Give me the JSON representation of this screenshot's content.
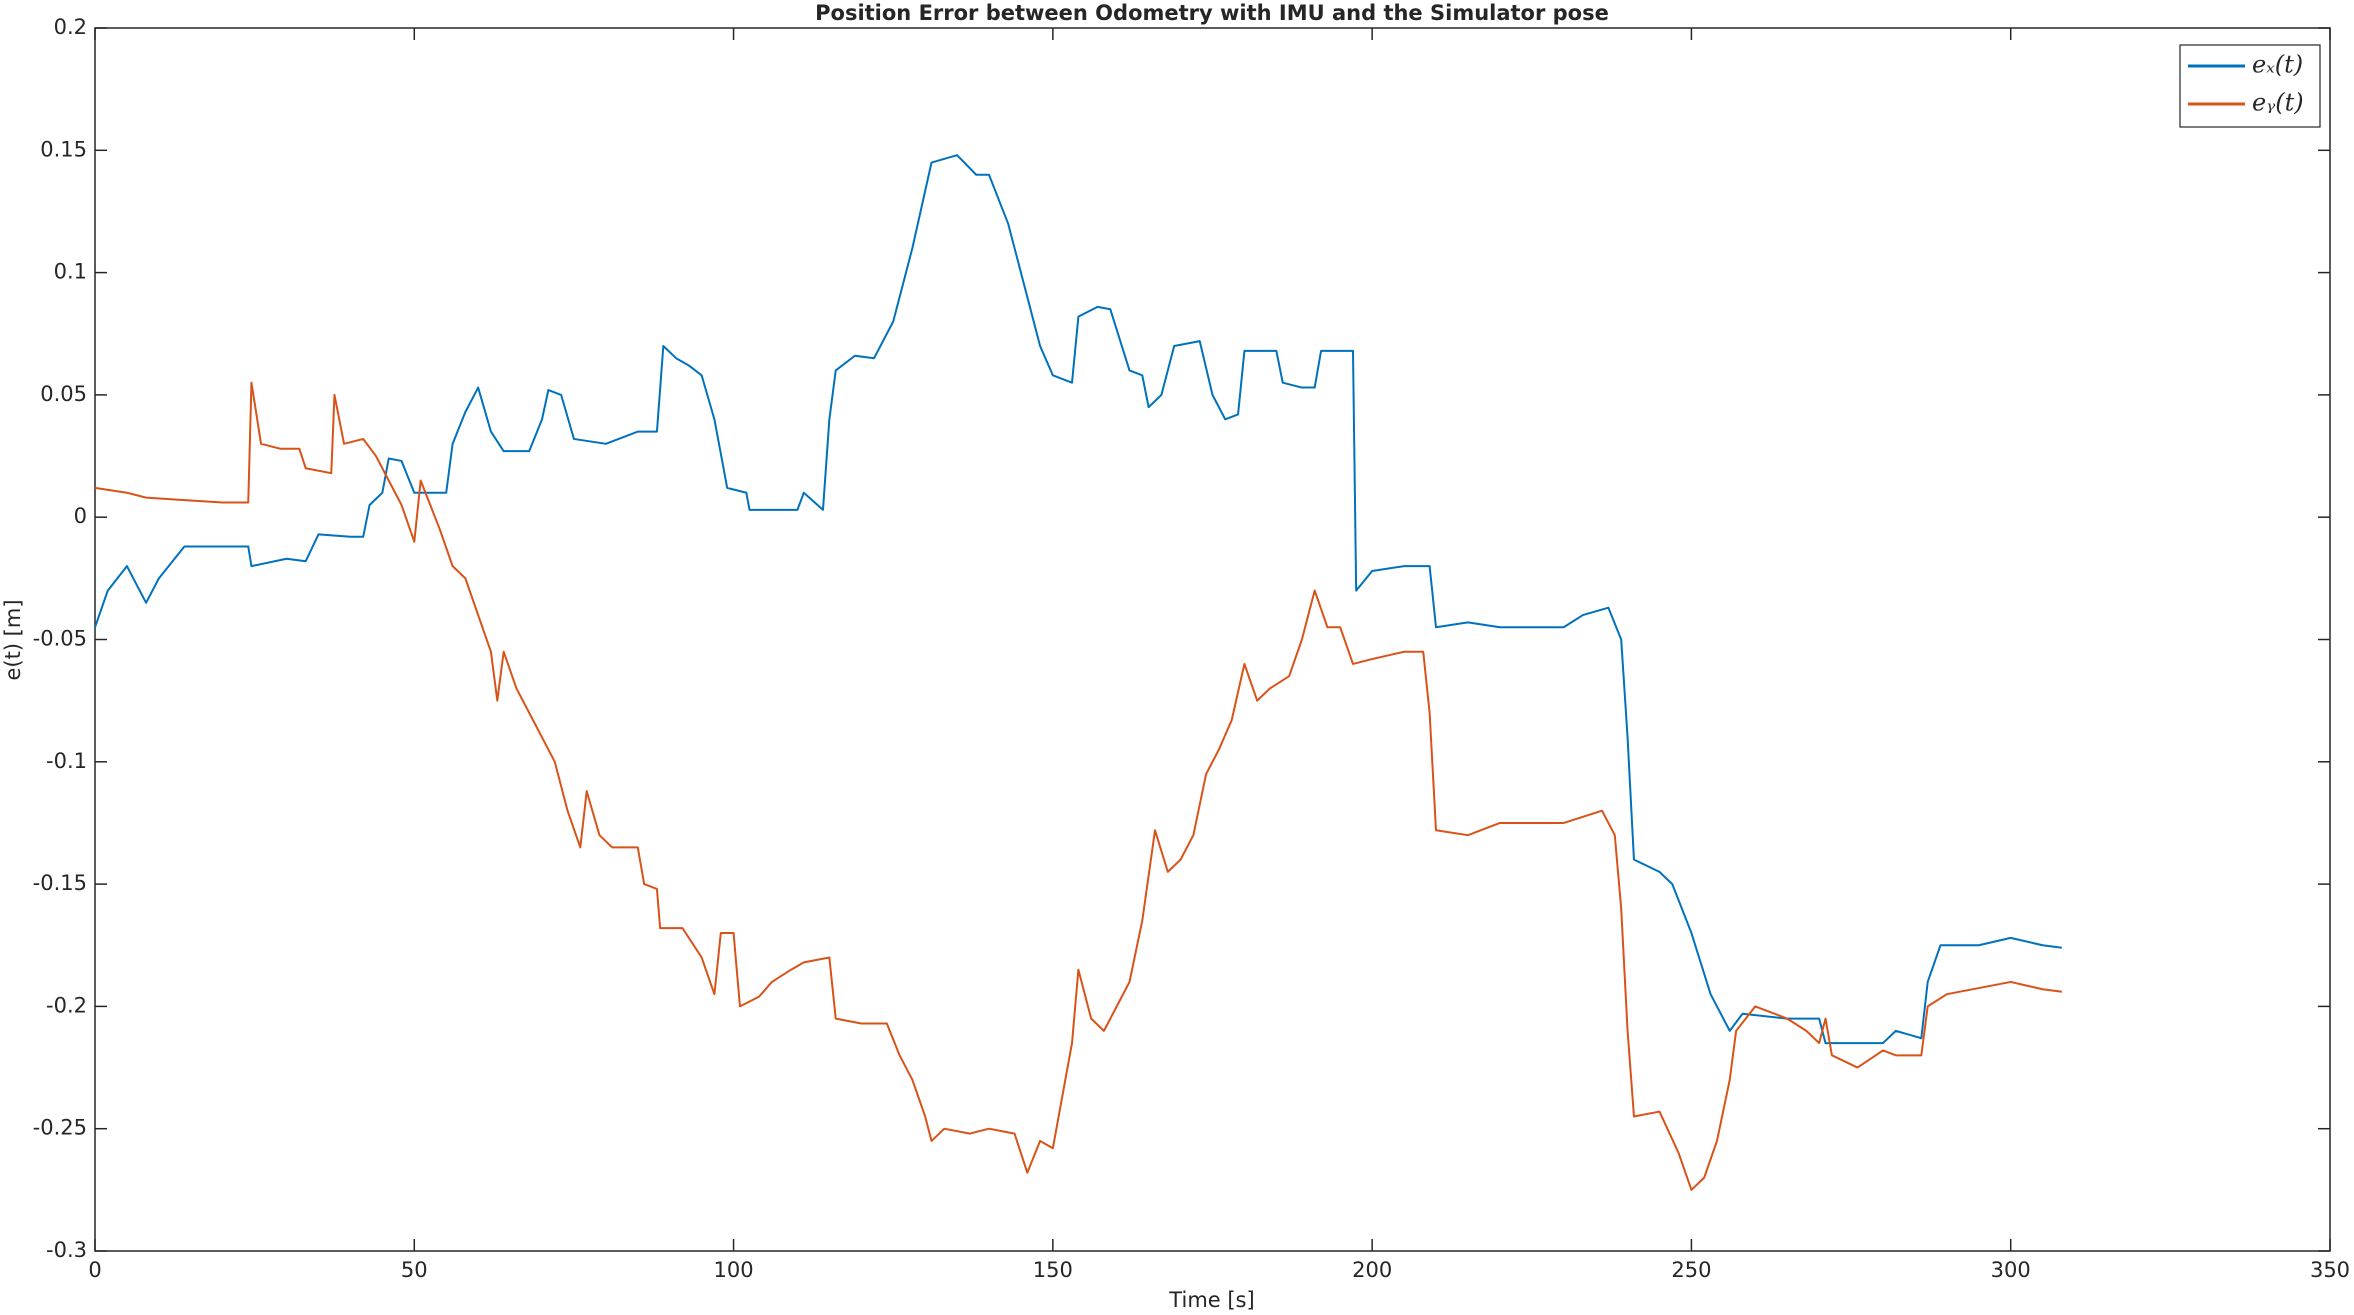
{
  "chart_data": {
    "type": "line",
    "title": "Position Error between Odometry with IMU and the Simulator pose",
    "x_label": "Time [s]",
    "y_label": "e(t) [m]",
    "xlim": [
      0,
      350
    ],
    "xticks": [
      0,
      50,
      100,
      150,
      200,
      250,
      300,
      350
    ],
    "ylim": [
      -0.3,
      0.2
    ],
    "yticks": [
      -0.3,
      -0.25,
      -0.2,
      -0.15,
      -0.1,
      -0.05,
      0,
      0.05,
      0.1,
      0.15,
      0.2
    ],
    "grid": false,
    "legend": "top-right",
    "series": [
      {
        "name": "eₓ(t)",
        "color": "#0072bd",
        "x": [
          0,
          2,
          5,
          8,
          10,
          14,
          20,
          24,
          24.5,
          30,
          33,
          35,
          40,
          42,
          43,
          45,
          46,
          48,
          50,
          55,
          56,
          58,
          60,
          62,
          64,
          68,
          70,
          71,
          73,
          75,
          80,
          85,
          88,
          89,
          91,
          93,
          95,
          97,
          99,
          102,
          102.5,
          110,
          111,
          114,
          115,
          116,
          119,
          122,
          125,
          128,
          131,
          135,
          138,
          140,
          143,
          146,
          148,
          150,
          153,
          154,
          157,
          159,
          162,
          164,
          165,
          167,
          169,
          173,
          175,
          177,
          179,
          180,
          185,
          186,
          189,
          191,
          192,
          197,
          197.5,
          200,
          205,
          209,
          210,
          215,
          220,
          230,
          233,
          237,
          239,
          240,
          241,
          245,
          247,
          250,
          253,
          256,
          258,
          265,
          270,
          271,
          280,
          282,
          286,
          287,
          289,
          295,
          300,
          305,
          308
        ],
        "values": [
          -0.045,
          -0.03,
          -0.02,
          -0.035,
          -0.025,
          -0.012,
          -0.012,
          -0.012,
          -0.02,
          -0.017,
          -0.018,
          -0.007,
          -0.008,
          -0.008,
          0.005,
          0.01,
          0.024,
          0.023,
          0.01,
          0.01,
          0.03,
          0.043,
          0.053,
          0.035,
          0.027,
          0.027,
          0.04,
          0.052,
          0.05,
          0.032,
          0.03,
          0.035,
          0.035,
          0.07,
          0.065,
          0.062,
          0.058,
          0.04,
          0.012,
          0.01,
          0.003,
          0.003,
          0.01,
          0.003,
          0.04,
          0.06,
          0.066,
          0.065,
          0.08,
          0.11,
          0.145,
          0.148,
          0.14,
          0.14,
          0.12,
          0.09,
          0.07,
          0.058,
          0.055,
          0.082,
          0.086,
          0.085,
          0.06,
          0.058,
          0.045,
          0.05,
          0.07,
          0.072,
          0.05,
          0.04,
          0.042,
          0.068,
          0.068,
          0.055,
          0.053,
          0.053,
          0.068,
          0.068,
          -0.03,
          -0.022,
          -0.02,
          -0.02,
          -0.045,
          -0.043,
          -0.045,
          -0.045,
          -0.04,
          -0.037,
          -0.05,
          -0.09,
          -0.14,
          -0.145,
          -0.15,
          -0.17,
          -0.195,
          -0.21,
          -0.203,
          -0.205,
          -0.205,
          -0.215,
          -0.215,
          -0.21,
          -0.213,
          -0.19,
          -0.175,
          -0.175,
          -0.172,
          -0.175,
          -0.176
        ]
      },
      {
        "name": "eᵧ(t)",
        "color": "#d95319",
        "x": [
          0,
          5,
          8,
          14,
          20,
          24,
          24.5,
          26,
          29,
          32,
          33,
          37,
          37.5,
          39,
          42,
          44,
          46,
          48,
          50,
          51,
          54,
          56,
          58,
          60,
          62,
          63,
          64,
          66,
          68,
          70,
          72,
          74,
          76,
          77,
          79,
          81,
          85,
          86,
          88,
          88.5,
          92,
          95,
          97,
          98,
          100,
          101,
          104,
          106,
          109,
          111,
          115,
          116,
          120,
          124,
          126,
          128,
          130,
          131,
          133,
          137,
          140,
          144,
          146,
          148,
          150,
          153,
          154,
          156,
          158,
          160,
          162,
          164,
          166,
          168,
          170,
          172,
          174,
          176,
          178,
          180,
          182,
          184,
          187,
          189,
          191,
          193,
          195,
          197,
          200,
          205,
          208,
          209,
          210,
          215,
          220,
          230,
          236,
          238,
          239,
          240,
          241,
          245,
          248,
          250,
          252,
          254,
          256,
          257,
          260,
          265,
          268,
          270,
          271,
          272,
          276,
          280,
          282,
          286,
          287,
          290,
          300,
          305,
          308
        ],
        "values": [
          0.012,
          0.01,
          0.008,
          0.007,
          0.006,
          0.006,
          0.055,
          0.03,
          0.028,
          0.028,
          0.02,
          0.018,
          0.05,
          0.03,
          0.032,
          0.025,
          0.015,
          0.005,
          -0.01,
          0.015,
          -0.005,
          -0.02,
          -0.025,
          -0.04,
          -0.055,
          -0.075,
          -0.055,
          -0.07,
          -0.08,
          -0.09,
          -0.1,
          -0.12,
          -0.135,
          -0.112,
          -0.13,
          -0.135,
          -0.135,
          -0.15,
          -0.152,
          -0.168,
          -0.168,
          -0.18,
          -0.195,
          -0.17,
          -0.17,
          -0.2,
          -0.196,
          -0.19,
          -0.185,
          -0.182,
          -0.18,
          -0.205,
          -0.207,
          -0.207,
          -0.22,
          -0.23,
          -0.245,
          -0.255,
          -0.25,
          -0.252,
          -0.25,
          -0.252,
          -0.268,
          -0.255,
          -0.258,
          -0.215,
          -0.185,
          -0.205,
          -0.21,
          -0.2,
          -0.19,
          -0.165,
          -0.128,
          -0.145,
          -0.14,
          -0.13,
          -0.105,
          -0.095,
          -0.083,
          -0.06,
          -0.075,
          -0.07,
          -0.065,
          -0.05,
          -0.03,
          -0.045,
          -0.045,
          -0.06,
          -0.058,
          -0.055,
          -0.055,
          -0.08,
          -0.128,
          -0.13,
          -0.125,
          -0.125,
          -0.12,
          -0.13,
          -0.16,
          -0.21,
          -0.245,
          -0.243,
          -0.26,
          -0.275,
          -0.27,
          -0.255,
          -0.23,
          -0.21,
          -0.2,
          -0.205,
          -0.21,
          -0.215,
          -0.205,
          -0.22,
          -0.225,
          -0.218,
          -0.22,
          -0.22,
          -0.2,
          -0.195,
          -0.19,
          -0.193,
          -0.194
        ]
      }
    ]
  }
}
